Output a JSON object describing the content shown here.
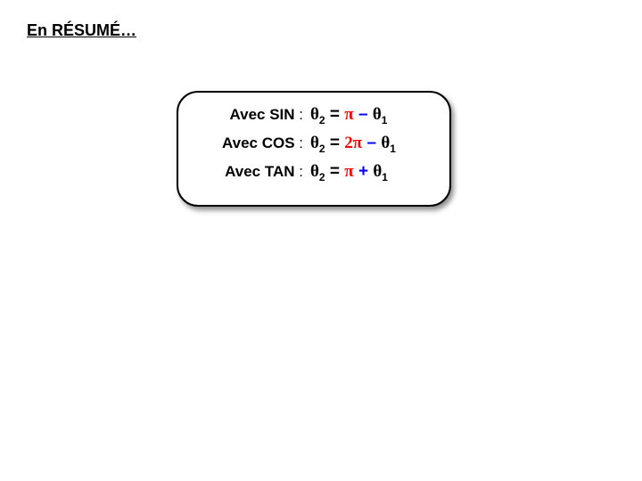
{
  "title": "En RÉSUMÉ…",
  "box": {
    "border_color": "#000000",
    "border_radius": 24,
    "shadow": "3px 4px 6px rgba(0,0,0,0.45)"
  },
  "rows": [
    {
      "avec": "Avec ",
      "fn": "SIN",
      "colon": " :",
      "theta2": "θ",
      "sub2": "2",
      "eq": "  =  ",
      "pi_coeff": "",
      "pi": "π",
      "op": " – ",
      "theta1": "θ",
      "sub1": "1"
    },
    {
      "avec": "Avec ",
      "fn": "COS",
      "colon": " :",
      "theta2": "θ",
      "sub2": "2",
      "eq": "  =  ",
      "pi_coeff": "2",
      "pi": "π",
      "op": " – ",
      "theta1": "θ",
      "sub1": "1"
    },
    {
      "avec": "Avec ",
      "fn": "TAN",
      "colon": " :",
      "theta2": "θ",
      "sub2": "2",
      "eq": "  =  ",
      "pi_coeff": "",
      "pi": "π",
      "op": "  +  ",
      "theta1": "θ",
      "sub1": "1"
    }
  ],
  "colors": {
    "text": "#000000",
    "pi": "#ff0000",
    "operator": "#0000ff",
    "background": "#ffffff"
  },
  "fonts": {
    "title_size": 18,
    "label_size": 17,
    "formula_size": 19,
    "sub_size": 12
  }
}
